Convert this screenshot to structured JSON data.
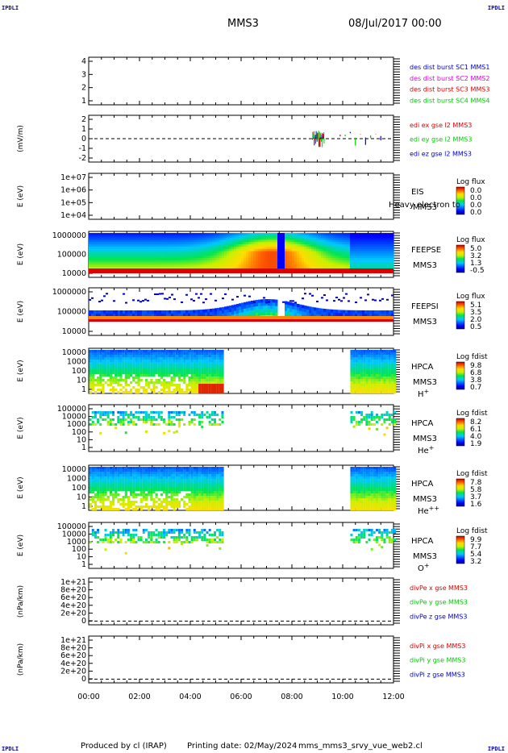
{
  "corners": {
    "top_left": "IPDLI",
    "top_right": "IPDLI",
    "bottom_left": "IPDLI",
    "bottom_right": "IPDLI"
  },
  "header": {
    "title": "MMS3",
    "datetime": "08/Jul/2017 00:00"
  },
  "footer": {
    "produced_by": "Produced by cl (IRAP)",
    "printing_date": "Printing date: 02/May/2024",
    "filename": "mms_mms3_srvy_vue_web2.cl"
  },
  "colors": {
    "blue": "#0000cc",
    "magenta": "#dd00dd",
    "red": "#dd0000",
    "green": "#00cc00"
  },
  "x_axis": {
    "ticks": [
      "00:00",
      "02:00",
      "04:00",
      "06:00",
      "08:00",
      "10:00",
      "12:00"
    ],
    "range_hours": [
      0,
      12
    ]
  },
  "chart_data": [
    {
      "id": "des-dist",
      "type": "line",
      "yticks": [
        "4",
        "3",
        "2",
        "1"
      ],
      "ylim": [
        0.6,
        4.4
      ],
      "legend": [
        {
          "text": "des dist burst SC1 MMS1",
          "color": "#0000cc"
        },
        {
          "text": "des dist burst SC2 MMS2",
          "color": "#dd00dd"
        },
        {
          "text": "des dist burst SC3 MMS3",
          "color": "#dd0000"
        },
        {
          "text": "des dist burst SC4 MMS4",
          "color": "#00cc00"
        }
      ]
    },
    {
      "id": "edi-e",
      "type": "line",
      "ylabel": "(mV/m)",
      "yticks": [
        "2",
        "1",
        "0",
        "-1",
        "-2"
      ],
      "ylim": [
        -2.6,
        2.6
      ],
      "zero_line": true,
      "legend": [
        {
          "text": "edi ex gse l2 MMS3",
          "color": "#dd0000"
        },
        {
          "text": "edi ey gse l2 MMS3",
          "color": "#00cc00"
        },
        {
          "text": "edi ez gse l2 MMS3",
          "color": "#0000cc"
        }
      ]
    },
    {
      "id": "eis",
      "type": "heatmap",
      "ylabel": "E (eV)",
      "yticks": [
        "1e+07",
        "1e+06",
        "1e+05",
        "1e+04"
      ],
      "labels": [
        "EIS",
        "MMS3"
      ],
      "overlay_text": "Heavy electron to",
      "colorbar_title": "Log flux",
      "colorbar_values": [
        "0.0",
        "0.0",
        "0.0",
        "0.0"
      ]
    },
    {
      "id": "feeps-e",
      "type": "heatmap",
      "ylabel": "E (eV)",
      "yticks": [
        "1000000",
        "100000",
        "10000"
      ],
      "labels": [
        "FEEPSE",
        "MMS3"
      ],
      "colorbar_title": "Log flux",
      "colorbar_values": [
        "5.0",
        "3.2",
        "1.3",
        "-0.5"
      ]
    },
    {
      "id": "feeps-i",
      "type": "heatmap",
      "ylabel": "E (eV)",
      "yticks": [
        "1000000",
        "100000",
        "10000"
      ],
      "labels": [
        "FEEPSI",
        "MMS3"
      ],
      "colorbar_title": "Log flux",
      "colorbar_values": [
        "5.1",
        "3.5",
        "2.0",
        "0.5"
      ]
    },
    {
      "id": "hpca-h",
      "type": "heatmap",
      "ylabel": "E (eV)",
      "yticks": [
        "10000",
        "1000",
        "100",
        "10",
        "1"
      ],
      "labels": [
        "HPCA",
        "MMS3"
      ],
      "species": "H",
      "charge": "+",
      "colorbar_title": "Log fdist",
      "colorbar_values": [
        "9.8",
        "6.8",
        "3.8",
        "0.7"
      ]
    },
    {
      "id": "hpca-he",
      "type": "heatmap",
      "ylabel": "E (eV)",
      "yticks": [
        "100000",
        "10000",
        "1000",
        "100",
        "10",
        "1"
      ],
      "labels": [
        "HPCA",
        "MMS3"
      ],
      "species": "He",
      "charge": "+",
      "colorbar_title": "Log fdist",
      "colorbar_values": [
        "8.2",
        "6.1",
        "4.0",
        "1.9"
      ]
    },
    {
      "id": "hpca-he2",
      "type": "heatmap",
      "ylabel": "E (eV)",
      "yticks": [
        "10000",
        "1000",
        "100",
        "10",
        "1"
      ],
      "labels": [
        "HPCA",
        "MMS3"
      ],
      "species": "He",
      "charge": "++",
      "colorbar_title": "Log fdist",
      "colorbar_values": [
        "7.8",
        "5.8",
        "3.7",
        "1.6"
      ]
    },
    {
      "id": "hpca-o",
      "type": "heatmap",
      "ylabel": "E (eV)",
      "yticks": [
        "100000",
        "10000",
        "1000",
        "100",
        "10",
        "1"
      ],
      "labels": [
        "HPCA",
        "MMS3"
      ],
      "species": "O",
      "charge": "+",
      "colorbar_title": "Log fdist",
      "colorbar_values": [
        "9.9",
        "7.7",
        "5.4",
        "3.2"
      ]
    },
    {
      "id": "divpe",
      "type": "line",
      "ylabel": "(nPa/km)",
      "yticks": [
        "1e+21",
        "8e+20",
        "6e+20",
        "4e+20",
        "2e+20",
        "0"
      ],
      "ylim": [
        -1e+20,
        1.1e+21
      ],
      "zero_line": true,
      "legend": [
        {
          "text": "divPe x gse MMS3",
          "color": "#dd0000"
        },
        {
          "text": "divPe y gse MMS3",
          "color": "#00cc00"
        },
        {
          "text": "divPe z gse MMS3",
          "color": "#0000cc"
        }
      ]
    },
    {
      "id": "divpi",
      "type": "line",
      "ylabel": "(nPa/km)",
      "yticks": [
        "1e+21",
        "8e+20",
        "6e+20",
        "4e+20",
        "2e+20",
        "0"
      ],
      "ylim": [
        -1e+20,
        1.1e+21
      ],
      "zero_line": true,
      "legend": [
        {
          "text": "divPi x gse MMS3",
          "color": "#dd0000"
        },
        {
          "text": "divPi y gse MMS3",
          "color": "#00cc00"
        },
        {
          "text": "divPi z gse MMS3",
          "color": "#0000cc"
        }
      ]
    }
  ]
}
